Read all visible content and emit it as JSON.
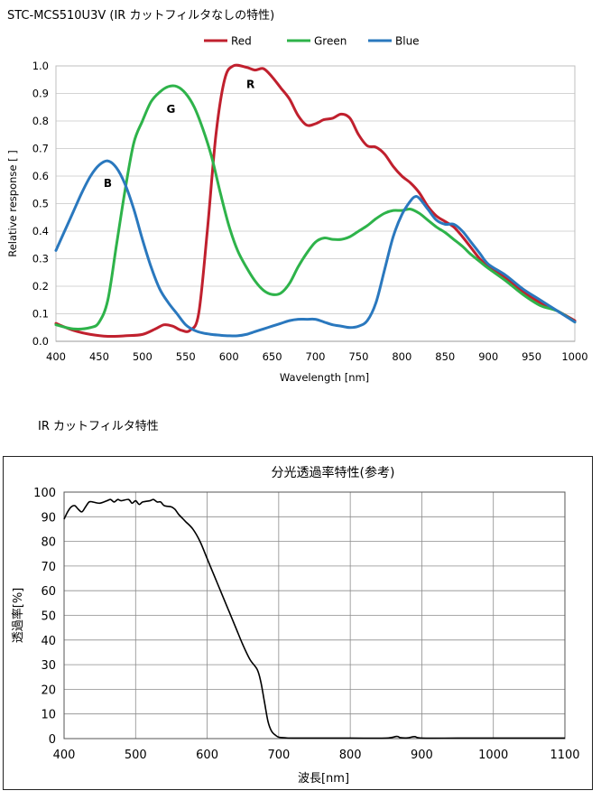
{
  "chart_data": [
    {
      "type": "line",
      "title": "STC-MCS510U3V (IR カットフィルタなしの特性)",
      "xlabel": "Wavelength [nm]",
      "ylabel": "Relative response [ ]",
      "xlim": [
        400,
        1000
      ],
      "ylim": [
        0,
        1.0
      ],
      "x_ticks": [
        "400",
        "450",
        "500",
        "550",
        "600",
        "650",
        "700",
        "750",
        "800",
        "850",
        "900",
        "950",
        "1000"
      ],
      "y_ticks": [
        "0.0",
        "0.1",
        "0.2",
        "0.3",
        "0.4",
        "0.5",
        "0.6",
        "0.7",
        "0.8",
        "0.9",
        "1.0"
      ],
      "grid": "horizontal",
      "legend_position": "top",
      "annotations": [
        {
          "text": "R",
          "x": 625,
          "y": 0.92
        },
        {
          "text": "G",
          "x": 533,
          "y": 0.83
        },
        {
          "text": "B",
          "x": 460,
          "y": 0.56
        }
      ],
      "series": [
        {
          "name": "Red",
          "color": "#c0202e",
          "points": [
            [
              400,
              0.065
            ],
            [
              420,
              0.04
            ],
            [
              440,
              0.025
            ],
            [
              460,
              0.018
            ],
            [
              480,
              0.02
            ],
            [
              500,
              0.025
            ],
            [
              515,
              0.045
            ],
            [
              525,
              0.06
            ],
            [
              535,
              0.055
            ],
            [
              545,
              0.04
            ],
            [
              555,
              0.04
            ],
            [
              565,
              0.1
            ],
            [
              575,
              0.4
            ],
            [
              585,
              0.75
            ],
            [
              595,
              0.95
            ],
            [
              605,
              1.0
            ],
            [
              620,
              0.995
            ],
            [
              630,
              0.985
            ],
            [
              640,
              0.99
            ],
            [
              650,
              0.96
            ],
            [
              660,
              0.92
            ],
            [
              670,
              0.88
            ],
            [
              680,
              0.82
            ],
            [
              690,
              0.785
            ],
            [
              700,
              0.79
            ],
            [
              710,
              0.805
            ],
            [
              720,
              0.81
            ],
            [
              730,
              0.825
            ],
            [
              740,
              0.81
            ],
            [
              750,
              0.75
            ],
            [
              760,
              0.71
            ],
            [
              770,
              0.705
            ],
            [
              780,
              0.68
            ],
            [
              790,
              0.635
            ],
            [
              800,
              0.6
            ],
            [
              810,
              0.575
            ],
            [
              820,
              0.54
            ],
            [
              830,
              0.49
            ],
            [
              840,
              0.455
            ],
            [
              850,
              0.435
            ],
            [
              860,
              0.415
            ],
            [
              870,
              0.38
            ],
            [
              880,
              0.34
            ],
            [
              890,
              0.3
            ],
            [
              900,
              0.27
            ],
            [
              920,
              0.23
            ],
            [
              940,
              0.18
            ],
            [
              960,
              0.14
            ],
            [
              980,
              0.11
            ],
            [
              1000,
              0.075
            ]
          ]
        },
        {
          "name": "Green",
          "color": "#2eb34a",
          "points": [
            [
              400,
              0.06
            ],
            [
              420,
              0.045
            ],
            [
              440,
              0.05
            ],
            [
              450,
              0.07
            ],
            [
              460,
              0.15
            ],
            [
              470,
              0.35
            ],
            [
              480,
              0.55
            ],
            [
              490,
              0.72
            ],
            [
              500,
              0.8
            ],
            [
              510,
              0.87
            ],
            [
              520,
              0.905
            ],
            [
              530,
              0.925
            ],
            [
              540,
              0.925
            ],
            [
              550,
              0.9
            ],
            [
              560,
              0.85
            ],
            [
              570,
              0.77
            ],
            [
              580,
              0.67
            ],
            [
              590,
              0.54
            ],
            [
              600,
              0.42
            ],
            [
              610,
              0.33
            ],
            [
              620,
              0.27
            ],
            [
              630,
              0.22
            ],
            [
              640,
              0.185
            ],
            [
              650,
              0.17
            ],
            [
              660,
              0.175
            ],
            [
              670,
              0.21
            ],
            [
              680,
              0.27
            ],
            [
              690,
              0.32
            ],
            [
              700,
              0.36
            ],
            [
              710,
              0.375
            ],
            [
              720,
              0.37
            ],
            [
              730,
              0.37
            ],
            [
              740,
              0.38
            ],
            [
              750,
              0.4
            ],
            [
              760,
              0.42
            ],
            [
              770,
              0.445
            ],
            [
              780,
              0.465
            ],
            [
              790,
              0.475
            ],
            [
              800,
              0.475
            ],
            [
              810,
              0.48
            ],
            [
              820,
              0.465
            ],
            [
              830,
              0.44
            ],
            [
              840,
              0.415
            ],
            [
              850,
              0.395
            ],
            [
              860,
              0.37
            ],
            [
              870,
              0.345
            ],
            [
              880,
              0.315
            ],
            [
              890,
              0.29
            ],
            [
              900,
              0.265
            ],
            [
              920,
              0.22
            ],
            [
              940,
              0.17
            ],
            [
              960,
              0.13
            ],
            [
              980,
              0.11
            ],
            [
              1000,
              0.07
            ]
          ]
        },
        {
          "name": "Blue",
          "color": "#2a78be",
          "points": [
            [
              400,
              0.33
            ],
            [
              410,
              0.4
            ],
            [
              420,
              0.47
            ],
            [
              430,
              0.54
            ],
            [
              440,
              0.6
            ],
            [
              450,
              0.64
            ],
            [
              460,
              0.655
            ],
            [
              470,
              0.63
            ],
            [
              480,
              0.57
            ],
            [
              490,
              0.48
            ],
            [
              500,
              0.37
            ],
            [
              510,
              0.27
            ],
            [
              520,
              0.19
            ],
            [
              530,
              0.14
            ],
            [
              540,
              0.1
            ],
            [
              550,
              0.06
            ],
            [
              560,
              0.04
            ],
            [
              570,
              0.03
            ],
            [
              580,
              0.025
            ],
            [
              590,
              0.022
            ],
            [
              600,
              0.02
            ],
            [
              610,
              0.02
            ],
            [
              620,
              0.025
            ],
            [
              630,
              0.035
            ],
            [
              640,
              0.045
            ],
            [
              650,
              0.055
            ],
            [
              660,
              0.065
            ],
            [
              670,
              0.075
            ],
            [
              680,
              0.08
            ],
            [
              690,
              0.08
            ],
            [
              700,
              0.08
            ],
            [
              710,
              0.07
            ],
            [
              720,
              0.06
            ],
            [
              730,
              0.055
            ],
            [
              740,
              0.05
            ],
            [
              750,
              0.055
            ],
            [
              760,
              0.075
            ],
            [
              770,
              0.14
            ],
            [
              780,
              0.26
            ],
            [
              790,
              0.38
            ],
            [
              800,
              0.46
            ],
            [
              810,
              0.51
            ],
            [
              815,
              0.525
            ],
            [
              820,
              0.52
            ],
            [
              830,
              0.48
            ],
            [
              840,
              0.44
            ],
            [
              850,
              0.425
            ],
            [
              860,
              0.425
            ],
            [
              870,
              0.4
            ],
            [
              880,
              0.36
            ],
            [
              890,
              0.32
            ],
            [
              900,
              0.28
            ],
            [
              920,
              0.24
            ],
            [
              940,
              0.19
            ],
            [
              960,
              0.15
            ],
            [
              980,
              0.11
            ],
            [
              1000,
              0.07
            ]
          ]
        }
      ]
    },
    {
      "type": "line",
      "section_title": "IR カットフィルタ特性",
      "title": "分光透過率特性(参考)",
      "xlabel": "波長[nm]",
      "ylabel": "透過率[%]",
      "xlim": [
        400,
        1100
      ],
      "ylim": [
        0,
        100
      ],
      "x_ticks": [
        "400",
        "500",
        "600",
        "700",
        "800",
        "900",
        "1000",
        "1100"
      ],
      "y_ticks": [
        "0",
        "10",
        "20",
        "30",
        "40",
        "50",
        "60",
        "70",
        "80",
        "90",
        "100"
      ],
      "grid": "both",
      "series": [
        {
          "name": "",
          "color": "#000000",
          "points": [
            [
              400,
              89
            ],
            [
              405,
              92
            ],
            [
              410,
              94
            ],
            [
              415,
              94.5
            ],
            [
              420,
              93
            ],
            [
              425,
              92
            ],
            [
              430,
              94
            ],
            [
              435,
              96
            ],
            [
              440,
              96
            ],
            [
              450,
              95.5
            ],
            [
              460,
              96.5
            ],
            [
              465,
              97
            ],
            [
              470,
              96
            ],
            [
              475,
              97
            ],
            [
              480,
              96.5
            ],
            [
              490,
              97
            ],
            [
              495,
              95.5
            ],
            [
              500,
              96.5
            ],
            [
              505,
              95
            ],
            [
              510,
              96
            ],
            [
              520,
              96.5
            ],
            [
              525,
              97
            ],
            [
              530,
              96
            ],
            [
              535,
              96
            ],
            [
              540,
              94.5
            ],
            [
              550,
              94
            ],
            [
              555,
              93
            ],
            [
              560,
              91
            ],
            [
              565,
              89.5
            ],
            [
              570,
              88
            ],
            [
              580,
              85
            ],
            [
              590,
              80
            ],
            [
              600,
              73
            ],
            [
              610,
              66
            ],
            [
              620,
              59
            ],
            [
              630,
              52
            ],
            [
              640,
              45
            ],
            [
              650,
              38
            ],
            [
              660,
              32
            ],
            [
              670,
              28
            ],
            [
              675,
              23
            ],
            [
              680,
              15
            ],
            [
              685,
              7
            ],
            [
              690,
              3
            ],
            [
              695,
              1.5
            ],
            [
              700,
              0.6
            ],
            [
              710,
              0.3
            ],
            [
              720,
              0.2
            ],
            [
              750,
              0.2
            ],
            [
              800,
              0.2
            ],
            [
              850,
              0.2
            ],
            [
              865,
              0.9
            ],
            [
              870,
              0.4
            ],
            [
              880,
              0.3
            ],
            [
              890,
              0.8
            ],
            [
              900,
              0.2
            ],
            [
              950,
              0.2
            ],
            [
              1000,
              0.2
            ],
            [
              1050,
              0.2
            ],
            [
              1100,
              0.2
            ]
          ]
        }
      ]
    }
  ]
}
